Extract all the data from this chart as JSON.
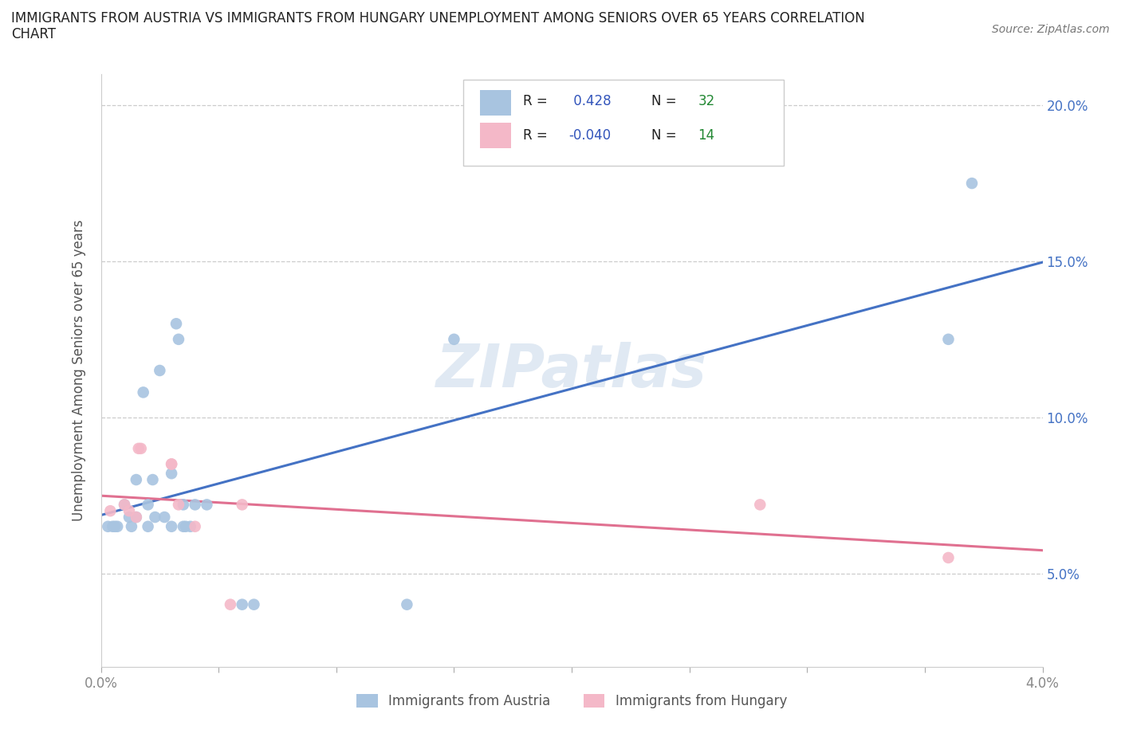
{
  "title_line1": "IMMIGRANTS FROM AUSTRIA VS IMMIGRANTS FROM HUNGARY UNEMPLOYMENT AMONG SENIORS OVER 65 YEARS CORRELATION",
  "title_line2": "CHART",
  "source": "Source: ZipAtlas.com",
  "ylabel_text": "Unemployment Among Seniors over 65 years",
  "watermark": "ZIPatlas",
  "austria_R": 0.428,
  "austria_N": 32,
  "hungary_R": -0.04,
  "hungary_N": 14,
  "xlim": [
    0.0,
    0.04
  ],
  "ylim": [
    0.02,
    0.21
  ],
  "xticks": [
    0.0,
    0.005,
    0.01,
    0.015,
    0.02,
    0.025,
    0.03,
    0.035,
    0.04
  ],
  "xtick_labels_show": {
    "0.0": "0.0%",
    "0.04": "4.0%"
  },
  "yticks": [
    0.05,
    0.1,
    0.15,
    0.2
  ],
  "ytick_labels": [
    "5.0%",
    "10.0%",
    "15.0%",
    "20.0%"
  ],
  "austria_x": [
    0.0003,
    0.0005,
    0.0006,
    0.0007,
    0.001,
    0.0012,
    0.0013,
    0.0015,
    0.0015,
    0.0018,
    0.002,
    0.002,
    0.0022,
    0.0023,
    0.0025,
    0.0027,
    0.003,
    0.003,
    0.0032,
    0.0033,
    0.0035,
    0.0035,
    0.0036,
    0.0038,
    0.004,
    0.0045,
    0.006,
    0.0065,
    0.013,
    0.015,
    0.036,
    0.037
  ],
  "austria_y": [
    0.065,
    0.065,
    0.065,
    0.065,
    0.072,
    0.068,
    0.065,
    0.068,
    0.08,
    0.108,
    0.065,
    0.072,
    0.08,
    0.068,
    0.115,
    0.068,
    0.065,
    0.082,
    0.13,
    0.125,
    0.065,
    0.072,
    0.065,
    0.065,
    0.072,
    0.072,
    0.04,
    0.04,
    0.04,
    0.125,
    0.125,
    0.175
  ],
  "hungary_x": [
    0.0004,
    0.001,
    0.0012,
    0.0015,
    0.0016,
    0.0017,
    0.003,
    0.0033,
    0.004,
    0.0055,
    0.028,
    0.036,
    0.003,
    0.006
  ],
  "hungary_y": [
    0.07,
    0.072,
    0.07,
    0.068,
    0.09,
    0.09,
    0.085,
    0.072,
    0.065,
    0.04,
    0.072,
    0.055,
    0.085,
    0.072
  ],
  "austria_color": "#a8c4e0",
  "hungary_color": "#f4b8c8",
  "austria_line_color": "#4472c4",
  "hungary_line_color": "#e07090",
  "grid_color": "#cccccc",
  "title_color": "#222222",
  "axis_label_color": "#555555",
  "tick_color": "#888888",
  "watermark_color": "#c8d8ea",
  "legend_r_color": "#3355bb",
  "legend_n_color": "#228833",
  "background_color": "#ffffff",
  "right_tick_color": "#4472c4"
}
